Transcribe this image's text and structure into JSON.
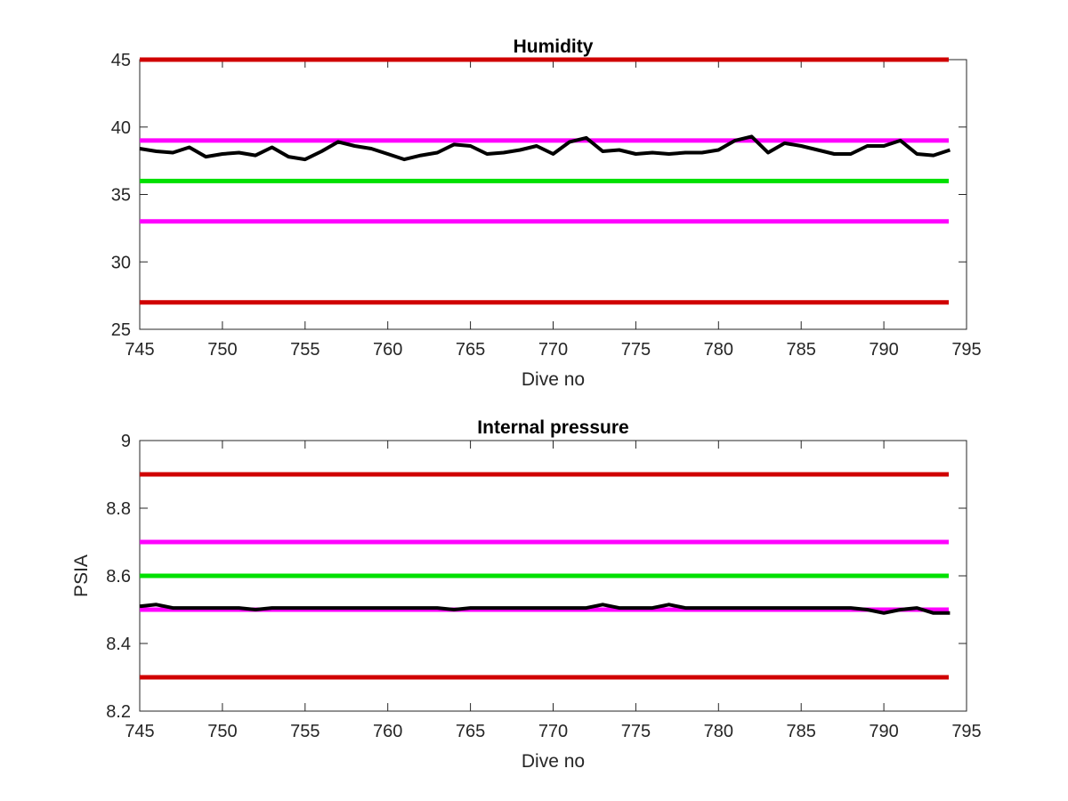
{
  "chart_data": [
    {
      "type": "line",
      "title": "Humidity",
      "xlabel": "Dive no",
      "ylabel": "",
      "xlim": [
        745,
        795
      ],
      "ylim": [
        25,
        45
      ],
      "xticks": [
        "745",
        "750",
        "755",
        "760",
        "765",
        "770",
        "775",
        "780",
        "785",
        "790",
        "795"
      ],
      "yticks": [
        "25",
        "30",
        "35",
        "40",
        "45"
      ],
      "grid": false,
      "thresholds": [
        {
          "value": 45,
          "color": "#d00000"
        },
        {
          "value": 39,
          "color": "#ff00ff"
        },
        {
          "value": 36,
          "color": "#00e000"
        },
        {
          "value": 33,
          "color": "#ff00ff"
        },
        {
          "value": 27,
          "color": "#d00000"
        }
      ],
      "series": [
        {
          "color": "#000000",
          "x": [
            745,
            746,
            747,
            748,
            749,
            750,
            751,
            752,
            753,
            754,
            755,
            756,
            757,
            758,
            759,
            760,
            761,
            762,
            763,
            764,
            765,
            766,
            767,
            768,
            769,
            770,
            771,
            772,
            773,
            774,
            775,
            776,
            777,
            778,
            779,
            780,
            781,
            782,
            783,
            784,
            785,
            786,
            787,
            788,
            789,
            790,
            791,
            792,
            793,
            794
          ],
          "y": [
            38.4,
            38.2,
            38.1,
            38.5,
            37.8,
            38.0,
            38.1,
            37.9,
            38.5,
            37.8,
            37.6,
            38.2,
            38.9,
            38.6,
            38.4,
            38.0,
            37.6,
            37.9,
            38.1,
            38.7,
            38.6,
            38.0,
            38.1,
            38.3,
            38.6,
            38.0,
            38.9,
            39.2,
            38.2,
            38.3,
            38.0,
            38.1,
            38.0,
            38.1,
            38.1,
            38.3,
            39.0,
            39.3,
            38.1,
            38.8,
            38.6,
            38.3,
            38.0,
            38.0,
            38.6,
            38.6,
            39.0,
            38.0,
            37.9,
            38.3
          ]
        }
      ]
    },
    {
      "type": "line",
      "title": "Internal pressure",
      "xlabel": "Dive no",
      "ylabel": "PSIA",
      "xlim": [
        745,
        795
      ],
      "ylim": [
        8.2,
        9
      ],
      "xticks": [
        "745",
        "750",
        "755",
        "760",
        "765",
        "770",
        "775",
        "780",
        "785",
        "790",
        "795"
      ],
      "yticks": [
        "8.2",
        "8.4",
        "8.6",
        "8.8",
        "9"
      ],
      "grid": false,
      "thresholds": [
        {
          "value": 8.9,
          "color": "#d00000"
        },
        {
          "value": 8.7,
          "color": "#ff00ff"
        },
        {
          "value": 8.6,
          "color": "#00e000"
        },
        {
          "value": 8.5,
          "color": "#ff00ff"
        },
        {
          "value": 8.3,
          "color": "#d00000"
        }
      ],
      "series": [
        {
          "color": "#000000",
          "x": [
            745,
            746,
            747,
            748,
            749,
            750,
            751,
            752,
            753,
            754,
            755,
            756,
            757,
            758,
            759,
            760,
            761,
            762,
            763,
            764,
            765,
            766,
            767,
            768,
            769,
            770,
            771,
            772,
            773,
            774,
            775,
            776,
            777,
            778,
            779,
            780,
            781,
            782,
            783,
            784,
            785,
            786,
            787,
            788,
            789,
            790,
            791,
            792,
            793,
            794
          ],
          "y": [
            8.51,
            8.515,
            8.505,
            8.505,
            8.505,
            8.505,
            8.505,
            8.5,
            8.505,
            8.505,
            8.505,
            8.505,
            8.505,
            8.505,
            8.505,
            8.505,
            8.505,
            8.505,
            8.505,
            8.5,
            8.505,
            8.505,
            8.505,
            8.505,
            8.505,
            8.505,
            8.505,
            8.505,
            8.515,
            8.505,
            8.505,
            8.505,
            8.515,
            8.505,
            8.505,
            8.505,
            8.505,
            8.505,
            8.505,
            8.505,
            8.505,
            8.505,
            8.505,
            8.505,
            8.5,
            8.49,
            8.5,
            8.505,
            8.49,
            8.49
          ]
        }
      ]
    }
  ]
}
